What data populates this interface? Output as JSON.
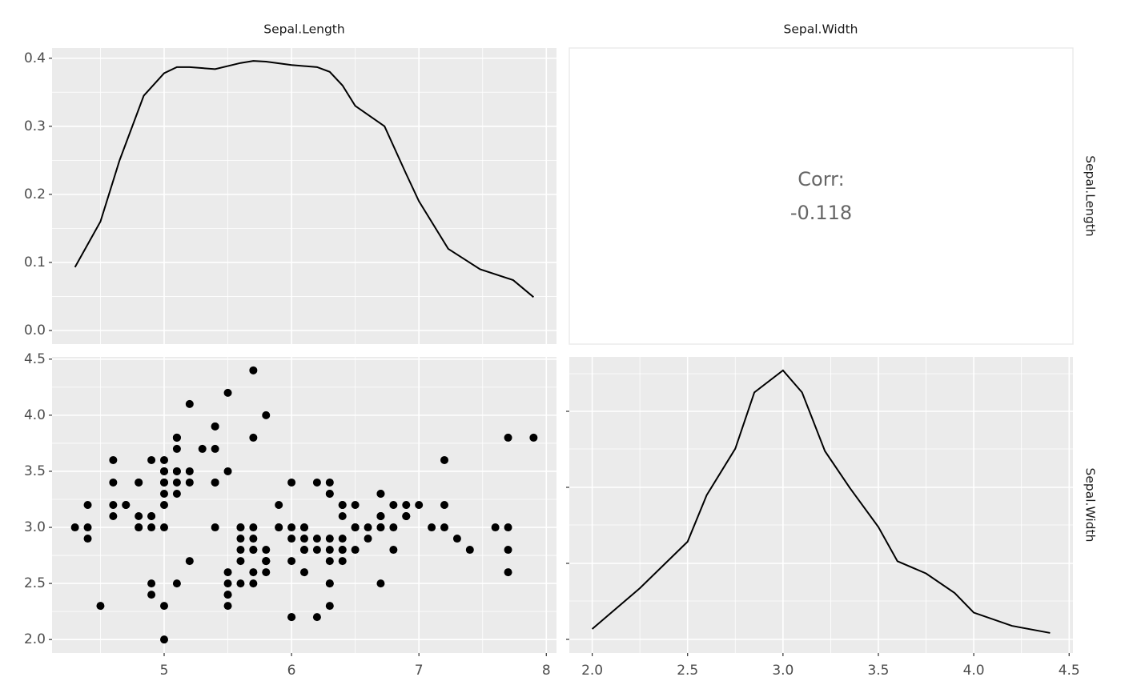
{
  "strips": {
    "top": [
      "Sepal.Length",
      "Sepal.Width"
    ],
    "right": [
      "Sepal.Length",
      "Sepal.Width"
    ]
  },
  "chart_data": [
    {
      "type": "line",
      "color": "#000000",
      "x": [
        4.3,
        4.5,
        4.65,
        4.84,
        5.0,
        5.1,
        5.2,
        5.4,
        5.6,
        5.7,
        5.8,
        6.0,
        6.2,
        6.3,
        6.4,
        6.5,
        6.73,
        6.9,
        7.0,
        7.23,
        7.48,
        7.74,
        7.9
      ],
      "values": [
        0.093,
        0.16,
        0.25,
        0.345,
        0.378,
        0.387,
        0.387,
        0.384,
        0.393,
        0.396,
        0.395,
        0.39,
        0.387,
        0.38,
        0.36,
        0.33,
        0.3,
        0.23,
        0.19,
        0.12,
        0.09,
        0.074,
        0.049
      ],
      "xlim": [
        4.12,
        8.08
      ],
      "ylim": [
        -0.02,
        0.415
      ],
      "yticks": [
        {
          "value": 0,
          "label": "0.0"
        },
        0.1,
        0.2,
        0.3,
        0.4
      ],
      "grid": true
    },
    {
      "type": "text",
      "label": "Corr:",
      "value": -0.118
    },
    {
      "type": "scatter",
      "color": "#000000",
      "x": [
        5.1,
        4.9,
        4.7,
        4.6,
        5.0,
        5.4,
        4.6,
        5.0,
        4.4,
        4.9,
        5.4,
        4.8,
        4.8,
        4.3,
        5.8,
        5.7,
        5.4,
        5.1,
        5.7,
        5.1,
        5.4,
        5.1,
        4.6,
        5.1,
        4.8,
        5.0,
        5.0,
        5.2,
        5.2,
        4.7,
        4.8,
        5.4,
        5.2,
        5.5,
        4.9,
        5.0,
        5.5,
        4.9,
        4.4,
        5.1,
        5.0,
        4.5,
        4.4,
        5.0,
        5.1,
        4.8,
        5.1,
        4.6,
        5.3,
        5.0,
        7.0,
        6.4,
        6.9,
        5.5,
        6.5,
        5.7,
        6.3,
        4.9,
        6.6,
        5.2,
        5.0,
        5.9,
        6.0,
        6.1,
        5.6,
        6.7,
        5.6,
        5.8,
        6.2,
        5.6,
        5.9,
        6.1,
        6.3,
        6.1,
        6.4,
        6.6,
        6.8,
        6.7,
        6.0,
        5.7,
        5.5,
        5.5,
        5.8,
        6.0,
        5.4,
        6.0,
        6.7,
        6.3,
        5.6,
        5.5,
        5.5,
        6.1,
        5.8,
        5.0,
        5.6,
        5.7,
        5.7,
        6.2,
        5.1,
        5.7,
        6.3,
        5.8,
        7.1,
        6.3,
        6.5,
        7.6,
        4.9,
        7.3,
        6.7,
        7.2,
        6.5,
        6.4,
        6.8,
        5.7,
        5.8,
        6.4,
        6.5,
        7.7,
        7.7,
        6.0,
        6.9,
        5.6,
        7.7,
        6.3,
        6.7,
        7.2,
        6.2,
        6.1,
        6.4,
        7.2,
        7.4,
        7.9,
        6.4,
        6.3,
        6.1,
        7.7,
        6.3,
        6.4,
        6.0,
        6.9,
        6.7,
        6.9,
        5.8,
        6.8,
        6.7,
        6.7,
        6.3,
        6.5,
        6.2,
        5.9
      ],
      "values": [
        3.5,
        3.0,
        3.2,
        3.1,
        3.6,
        3.9,
        3.4,
        3.4,
        2.9,
        3.1,
        3.7,
        3.4,
        3.0,
        3.0,
        4.0,
        4.4,
        3.9,
        3.5,
        3.8,
        3.8,
        3.4,
        3.7,
        3.6,
        3.3,
        3.4,
        3.0,
        3.4,
        3.5,
        3.4,
        3.2,
        3.1,
        3.4,
        4.1,
        4.2,
        3.1,
        3.2,
        3.5,
        3.6,
        3.0,
        3.4,
        3.5,
        2.3,
        3.2,
        3.5,
        3.8,
        3.0,
        3.8,
        3.2,
        3.7,
        3.3,
        3.2,
        3.2,
        3.1,
        2.3,
        2.8,
        2.8,
        3.3,
        2.4,
        2.9,
        2.7,
        2.0,
        3.0,
        2.2,
        2.9,
        2.9,
        3.1,
        3.0,
        2.7,
        2.2,
        2.5,
        3.2,
        2.8,
        2.5,
        2.8,
        2.9,
        3.0,
        2.8,
        3.0,
        2.9,
        2.6,
        2.4,
        2.4,
        2.7,
        2.7,
        3.0,
        3.4,
        3.1,
        2.3,
        3.0,
        2.5,
        2.6,
        3.0,
        2.6,
        2.3,
        2.7,
        3.0,
        2.9,
        2.9,
        2.5,
        2.8,
        3.3,
        2.7,
        3.0,
        2.9,
        3.0,
        3.0,
        2.5,
        2.9,
        2.5,
        3.6,
        3.2,
        2.7,
        3.0,
        2.5,
        2.8,
        3.2,
        3.0,
        3.8,
        2.6,
        2.2,
        3.2,
        2.8,
        2.8,
        2.7,
        3.3,
        3.2,
        2.8,
        3.0,
        2.8,
        3.0,
        2.8,
        3.8,
        2.8,
        2.8,
        2.6,
        3.0,
        3.4,
        3.1,
        3.0,
        3.1,
        3.1,
        3.1,
        2.7,
        3.2,
        3.3,
        3.0,
        2.5,
        3.0,
        3.4,
        3.0
      ],
      "xlim": [
        4.12,
        8.08
      ],
      "ylim": [
        1.88,
        4.52
      ],
      "xticks": [
        5,
        6,
        7,
        8
      ],
      "yticks": [
        {
          "value": 2,
          "label": "2.0"
        },
        2.5,
        {
          "value": 3,
          "label": "3.0"
        },
        3.5,
        {
          "value": 4,
          "label": "4.0"
        },
        4.5
      ],
      "grid": true
    },
    {
      "type": "line",
      "color": "#000000",
      "x": [
        2.0,
        2.25,
        2.5,
        2.6,
        2.75,
        2.85,
        3.0,
        3.1,
        3.22,
        3.35,
        3.5,
        3.6,
        3.75,
        3.9,
        4.0,
        4.2,
        4.4
      ],
      "values": [
        0.043,
        0.21,
        0.4,
        0.59,
        0.78,
        1.01,
        1.1,
        1.01,
        0.77,
        0.62,
        0.46,
        0.32,
        0.27,
        0.19,
        0.11,
        0.056,
        0.027
      ],
      "xlim": [
        1.88,
        4.52
      ],
      "ylim": [
        -0.055,
        1.155
      ],
      "xticks": [
        {
          "value": 2,
          "label": "2.0"
        },
        2.5,
        {
          "value": 3,
          "label": "3.0"
        },
        3.5,
        {
          "value": 4,
          "label": "4.0"
        },
        4.5
      ],
      "grid": true
    }
  ]
}
